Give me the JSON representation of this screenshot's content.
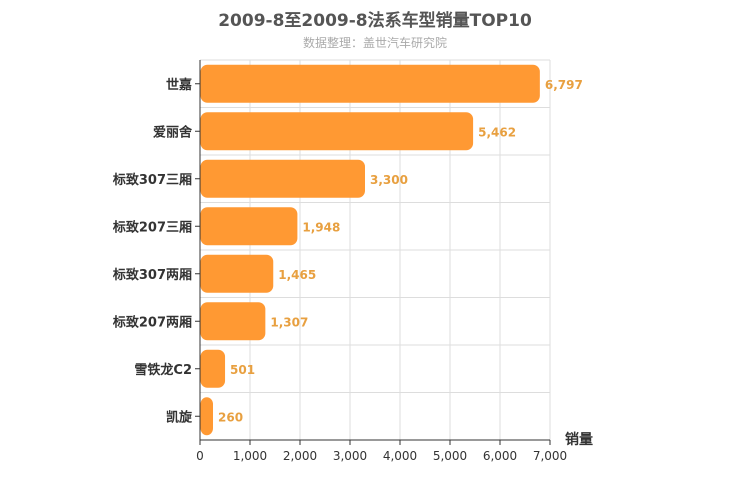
{
  "chart_data": {
    "type": "bar",
    "orientation": "horizontal",
    "title": "2009-8至2009-8法系车型销量TOP10",
    "subtitle": "数据整理：盖世汽车研究院",
    "xlabel": "销量",
    "ylabel": "",
    "categories": [
      "世嘉",
      "爱丽舍",
      "标致307三厢",
      "标致207三厢",
      "标致307两厢",
      "标致207两厢",
      "雪铁龙C2",
      "凯旋"
    ],
    "values": [
      6797,
      5462,
      3300,
      1948,
      1465,
      1307,
      501,
      260
    ],
    "value_labels": [
      "6,797",
      "5,462",
      "3,300",
      "1,948",
      "1,465",
      "1,307",
      "501",
      "260"
    ],
    "xlim": [
      0,
      7000
    ],
    "xticks": [
      0,
      1000,
      2000,
      3000,
      4000,
      5000,
      6000,
      7000
    ],
    "xtick_labels": [
      "0",
      "1,000",
      "2,000",
      "3,000",
      "4,000",
      "5,000",
      "6,000",
      "7,000"
    ],
    "grid": true,
    "legend": "none",
    "colors": {
      "bar": "#FF9933",
      "value_label": "#E8A040",
      "grid": "#DDDDDD",
      "axis": "#333333"
    }
  }
}
